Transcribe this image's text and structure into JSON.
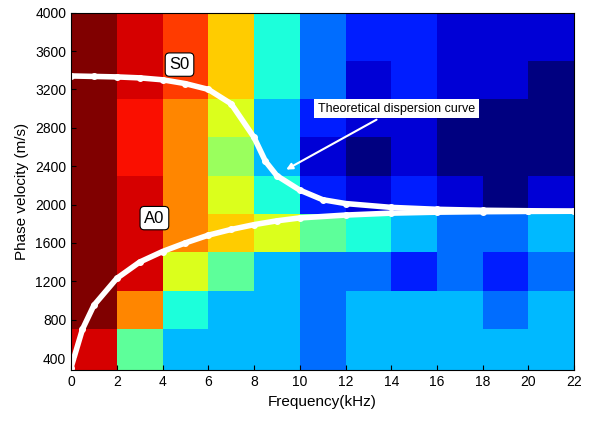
{
  "chart_data": {
    "type": "heatmap",
    "x_label": "Frequency(kHz)",
    "y_label": "Phase velocity (m/s)",
    "xlim": [
      0,
      22
    ],
    "xticks": [
      0,
      2,
      4,
      6,
      8,
      10,
      12,
      14,
      16,
      18,
      20,
      22
    ],
    "ylim": [
      270,
      4000
    ],
    "yticks": [
      400,
      800,
      1200,
      1600,
      2000,
      2400,
      2800,
      3200,
      3600,
      4000
    ],
    "x_edges": [
      0,
      2,
      4,
      6,
      8,
      10,
      12,
      14,
      16,
      18,
      20,
      22
    ],
    "y_edges": [
      270,
      700,
      1100,
      1500,
      1900,
      2300,
      2700,
      3100,
      3500,
      4000
    ],
    "cells": [
      [
        0.9,
        0.6,
        0.5,
        0.5,
        0.5,
        0.45,
        0.5,
        0.5,
        0.5,
        0.5,
        0.5
      ],
      [
        0.95,
        0.8,
        0.55,
        0.5,
        0.5,
        0.45,
        0.5,
        0.5,
        0.5,
        0.45,
        0.5
      ],
      [
        0.95,
        0.9,
        0.7,
        0.6,
        0.5,
        0.45,
        0.45,
        0.4,
        0.45,
        0.4,
        0.45
      ],
      [
        0.95,
        0.9,
        0.8,
        0.75,
        0.7,
        0.6,
        0.55,
        0.5,
        0.45,
        0.45,
        0.5
      ],
      [
        0.95,
        0.9,
        0.8,
        0.7,
        0.55,
        0.4,
        0.35,
        0.4,
        0.35,
        0.3,
        0.35
      ],
      [
        0.95,
        0.88,
        0.8,
        0.65,
        0.5,
        0.35,
        0.3,
        0.35,
        0.3,
        0.3,
        0.3
      ],
      [
        0.95,
        0.88,
        0.8,
        0.7,
        0.5,
        0.4,
        0.35,
        0.35,
        0.3,
        0.3,
        0.3
      ],
      [
        0.95,
        0.9,
        0.85,
        0.75,
        0.55,
        0.45,
        0.35,
        0.4,
        0.35,
        0.35,
        0.3
      ],
      [
        0.95,
        0.9,
        0.85,
        0.75,
        0.55,
        0.45,
        0.4,
        0.4,
        0.35,
        0.35,
        0.35
      ]
    ],
    "series": [
      {
        "name": "S0",
        "type": "line",
        "color": "#ffffff",
        "marker": "o",
        "line_style": "solid",
        "x": [
          0,
          1,
          2,
          3,
          4,
          5,
          6,
          7,
          8,
          8.5,
          9,
          10,
          11,
          12,
          14,
          16,
          18,
          20,
          22
        ],
        "values": [
          3340,
          3335,
          3330,
          3320,
          3300,
          3260,
          3200,
          3050,
          2700,
          2450,
          2300,
          2150,
          2050,
          2010,
          1970,
          1950,
          1940,
          1935,
          1930
        ]
      },
      {
        "name": "A0",
        "type": "line",
        "color": "#ffffff",
        "marker": "o",
        "line_style": "solid",
        "x": [
          0,
          0.5,
          1,
          2,
          3,
          4,
          5,
          6,
          7,
          8,
          9,
          10,
          12,
          14,
          16,
          18,
          20,
          22
        ],
        "values": [
          300,
          700,
          950,
          1230,
          1400,
          1510,
          1600,
          1680,
          1740,
          1790,
          1830,
          1860,
          1890,
          1910,
          1920,
          1925,
          1928,
          1930
        ]
      }
    ],
    "annotations": [
      "Theoretical dispersion curve"
    ]
  }
}
